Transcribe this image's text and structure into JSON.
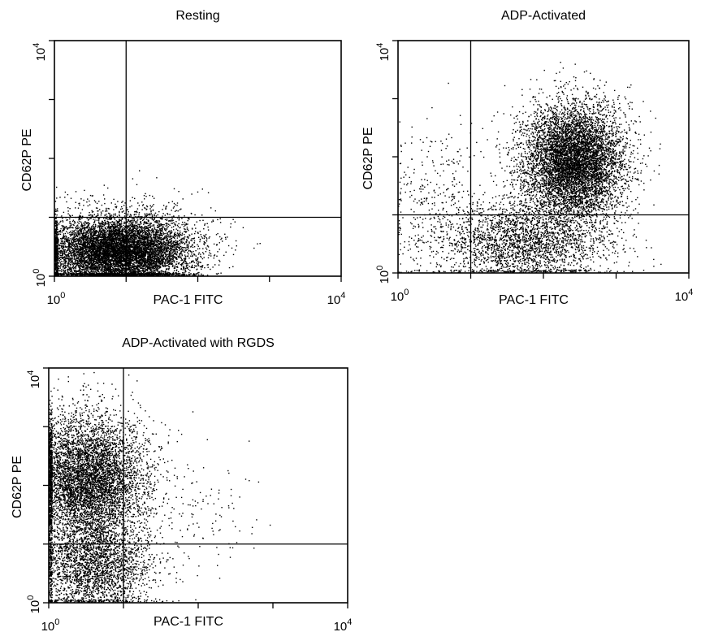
{
  "chart_data": [
    {
      "type": "scatter",
      "title": "Resting",
      "xlabel": "PAC-1 FITC",
      "ylabel": "CD62P PE",
      "x_scale": "log",
      "y_scale": "log",
      "xlim": [
        1,
        10000
      ],
      "ylim": [
        1,
        10000
      ],
      "x_ticks": [
        "10^0",
        "10^4"
      ],
      "y_ticks": [
        "10^0",
        "10^4"
      ],
      "tick_base": "10",
      "tick_min_exp": "0",
      "tick_max_exp": "4",
      "quadrant_gate": {
        "x": 10,
        "y": 10
      },
      "grid": false,
      "populations": [
        {
          "center_log": [
            0.9,
            0.4
          ],
          "spread_log": [
            0.5,
            0.3
          ],
          "count": 9000
        },
        {
          "center_log": [
            1.4,
            0.9
          ],
          "spread_log": [
            0.5,
            0.3
          ],
          "count": 120
        }
      ]
    },
    {
      "type": "scatter",
      "title": "ADP-Activated",
      "xlabel": "PAC-1 FITC",
      "ylabel": "CD62P PE",
      "x_scale": "log",
      "y_scale": "log",
      "xlim": [
        1,
        10000
      ],
      "ylim": [
        1,
        10000
      ],
      "x_ticks": [
        "10^0",
        "10^4"
      ],
      "y_ticks": [
        "10^0",
        "10^4"
      ],
      "tick_base": "10",
      "tick_min_exp": "0",
      "tick_max_exp": "4",
      "quadrant_gate": {
        "x": 10,
        "y": 10
      },
      "grid": false,
      "populations": [
        {
          "center_log": [
            2.4,
            1.9
          ],
          "spread_log": [
            0.35,
            0.5
          ],
          "count": 7000
        },
        {
          "center_log": [
            1.7,
            0.5
          ],
          "spread_log": [
            0.6,
            0.35
          ],
          "count": 2500
        },
        {
          "center_log": [
            0.5,
            1.3
          ],
          "spread_log": [
            0.35,
            0.6
          ],
          "count": 300
        }
      ]
    },
    {
      "type": "scatter",
      "title": "ADP-Activated with RGDS",
      "xlabel": "PAC-1 FITC",
      "ylabel": "CD62P PE",
      "x_scale": "log",
      "y_scale": "log",
      "xlim": [
        1,
        10000
      ],
      "ylim": [
        1,
        10000
      ],
      "x_ticks": [
        "10^0",
        "10^4"
      ],
      "y_ticks": [
        "10^0",
        "10^4"
      ],
      "tick_base": "10",
      "tick_min_exp": "0",
      "tick_max_exp": "4",
      "quadrant_gate": {
        "x": 10,
        "y": 10
      },
      "grid": false,
      "populations": [
        {
          "center_log": [
            0.5,
            2.1
          ],
          "spread_log": [
            0.4,
            0.55
          ],
          "count": 6000
        },
        {
          "center_log": [
            0.6,
            0.6
          ],
          "spread_log": [
            0.4,
            0.4
          ],
          "count": 2500
        },
        {
          "center_log": [
            1.8,
            1.5
          ],
          "spread_log": [
            0.5,
            0.6
          ],
          "count": 150
        }
      ]
    }
  ]
}
